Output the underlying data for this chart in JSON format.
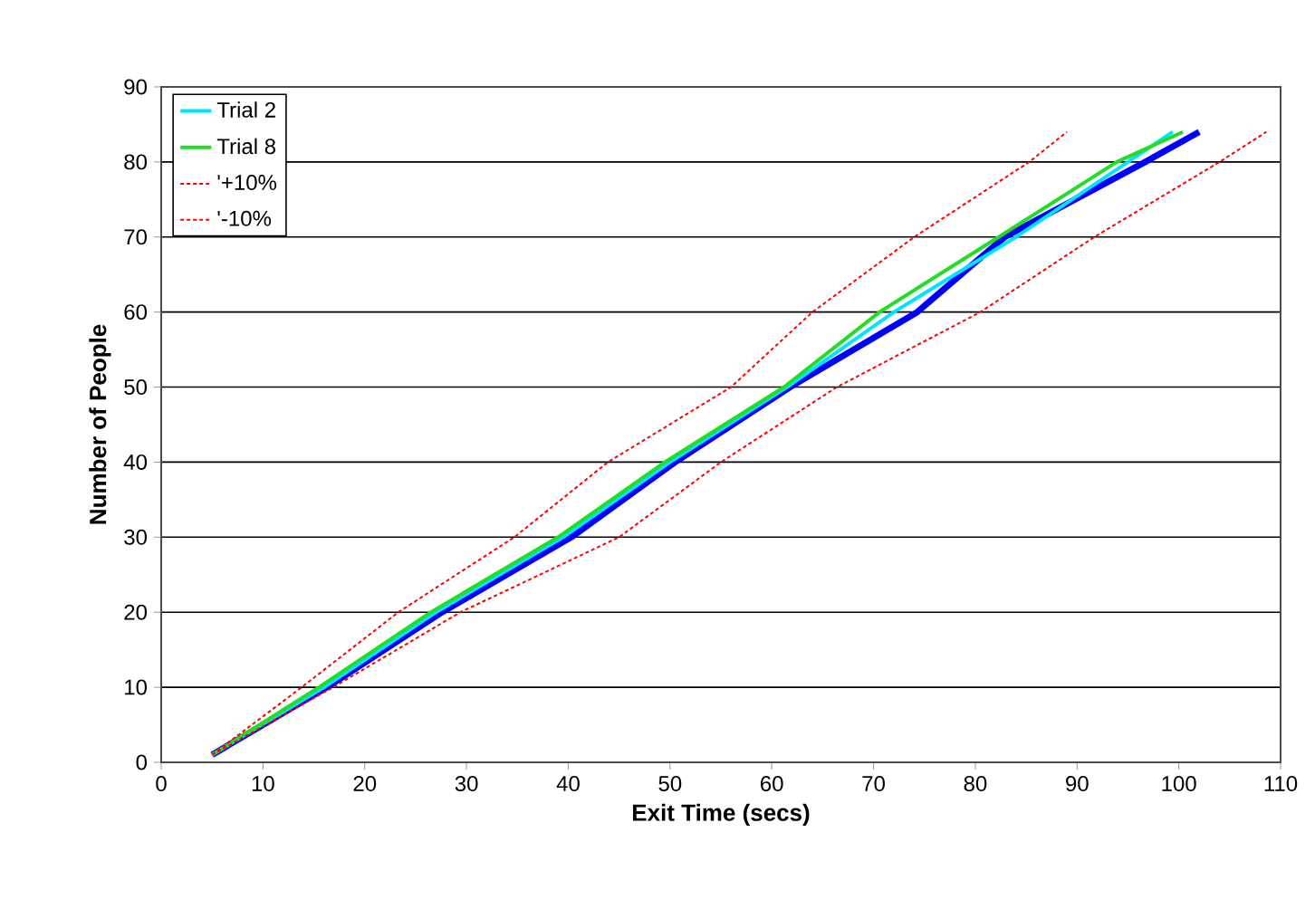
{
  "chart_data": {
    "type": "line",
    "xlabel": "Exit Time (secs)",
    "ylabel": "Number of People",
    "xlim": [
      0,
      110
    ],
    "xticks": [
      0,
      10,
      20,
      30,
      40,
      50,
      60,
      70,
      80,
      90,
      100,
      110
    ],
    "ylim": [
      0,
      90
    ],
    "yticks": [
      0,
      10,
      20,
      30,
      40,
      50,
      60,
      70,
      80,
      90
    ],
    "grid": "y",
    "legend": "top left",
    "marker": "none",
    "series": [
      {
        "name": "Trial 2",
        "color": "#00e5ff",
        "line_style": "solid",
        "x": [
          5,
          16,
          27,
          39.5,
          50,
          61.5,
          72,
          84,
          95,
          99.4
        ],
        "values": [
          1,
          10,
          20,
          30,
          40,
          50,
          60,
          70,
          80,
          84
        ]
      },
      {
        "name": "Trial 8",
        "color": "#22dd22",
        "line_style": "solid",
        "x": [
          5,
          15.5,
          26.5,
          39,
          49.5,
          61.2,
          70.6,
          82.3,
          93.9,
          100.4
        ],
        "values": [
          1,
          10,
          20,
          30,
          40,
          50,
          60,
          70,
          80,
          84
        ]
      },
      {
        "name": "'+10%",
        "color": "#ff0000",
        "line_style": "dashed",
        "x": [
          5,
          13.8,
          23.3,
          34.7,
          43.9,
          56,
          64,
          74,
          85.3,
          89
        ],
        "values": [
          1,
          10,
          20,
          30,
          40,
          50,
          60,
          70,
          80,
          84
        ]
      },
      {
        "name": "'-10%",
        "color": "#ff0000",
        "line_style": "dashed",
        "x": [
          5,
          16.9,
          29.4,
          45,
          55,
          66.4,
          80.5,
          91.7,
          104,
          108.6
        ],
        "values": [
          1,
          10,
          20,
          30,
          40,
          50,
          60,
          70,
          80,
          84
        ]
      },
      {
        "color": "#0000ff",
        "line_style": "solid",
        "x": [
          5,
          16.3,
          27.6,
          40.3,
          50.5,
          61.8,
          74.3,
          82.9,
          96.7,
          102
        ],
        "values": [
          1,
          10,
          20,
          30,
          40,
          50,
          60,
          70,
          80,
          84
        ]
      }
    ]
  }
}
